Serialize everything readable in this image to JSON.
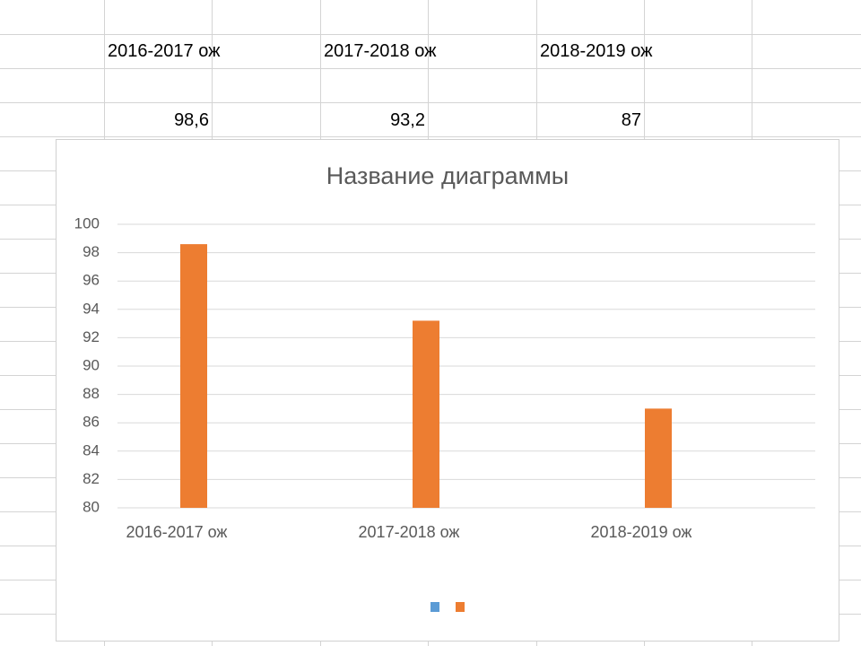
{
  "sheet": {
    "headers": [
      "2016-2017 ож",
      "2017-2018 ож",
      "2018-2019 ож"
    ],
    "cells": [
      "98,6",
      "93,2",
      "87"
    ]
  },
  "chart_data": {
    "type": "bar",
    "title": "Название диаграммы",
    "categories": [
      "2016-2017 ож",
      "2017-2018 ож",
      "2018-2019 ож"
    ],
    "series": [
      {
        "color": "#5b9bd5",
        "values": [
          null,
          null,
          null
        ]
      },
      {
        "color": "#ed7d31",
        "values": [
          98.6,
          93.2,
          87
        ]
      }
    ],
    "ylim": [
      80,
      100
    ],
    "yticks": [
      80,
      82,
      84,
      86,
      88,
      90,
      92,
      94,
      96,
      98,
      100
    ],
    "grid": true,
    "legend": "bottom"
  }
}
